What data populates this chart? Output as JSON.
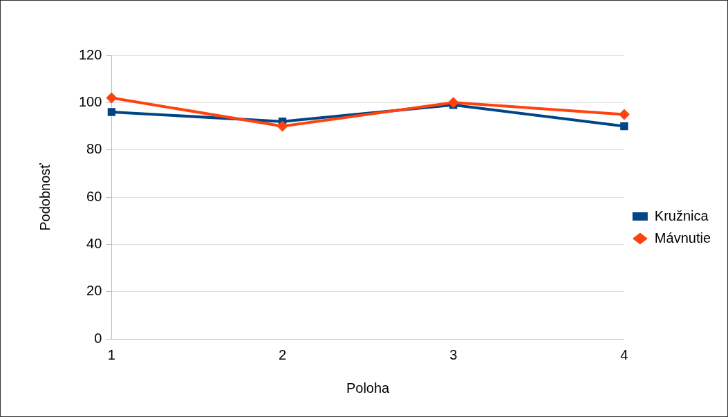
{
  "chart_data": {
    "type": "line",
    "xlabel": "Poloha",
    "ylabel": "Podobnosť",
    "categories": [
      "1",
      "2",
      "3",
      "4"
    ],
    "series": [
      {
        "name": "Kružnica",
        "color": "#004586",
        "values": [
          96,
          92,
          99,
          90
        ],
        "marker": "square"
      },
      {
        "name": "Mávnutie",
        "color": "#ff420e",
        "values": [
          102,
          90,
          100,
          95
        ],
        "marker": "diamond"
      }
    ],
    "ylim": [
      0,
      120
    ],
    "yticks": [
      0,
      20,
      40,
      60,
      80,
      100,
      120
    ],
    "grid": "y",
    "legend": "right",
    "line_style": "solid"
  }
}
